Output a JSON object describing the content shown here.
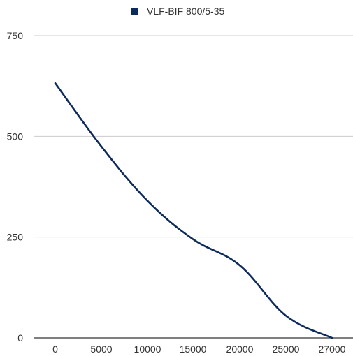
{
  "chart_data": {
    "type": "line",
    "title": "",
    "xlabel": "",
    "ylabel": "",
    "x": [
      0,
      5000,
      10000,
      15000,
      20000,
      25000,
      27000
    ],
    "x_tick_labels": [
      "0",
      "5000",
      "10000",
      "15000",
      "20000",
      "25000",
      "27000"
    ],
    "y_ticks": [
      0,
      250,
      500,
      750
    ],
    "y_tick_labels": [
      "0",
      "250",
      "500",
      "750"
    ],
    "ylim": [
      0,
      750
    ],
    "grid": true,
    "legend_position": "top",
    "series": [
      {
        "name": "VLF-BIF 800/5-35",
        "color": "#0d2a5c",
        "values": [
          632,
          475,
          340,
          245,
          180,
          55,
          0
        ]
      }
    ]
  }
}
